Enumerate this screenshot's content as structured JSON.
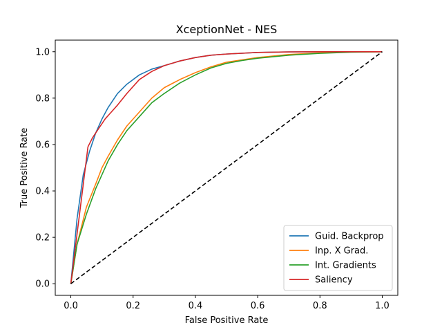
{
  "chart_data": {
    "type": "line",
    "title": "XceptionNet - NES",
    "xlabel": "False Positive Rate",
    "ylabel": "True Positive Rate",
    "xlim": [
      -0.05,
      1.05
    ],
    "ylim": [
      -0.05,
      1.05
    ],
    "xticks": [
      "0.0",
      "0.2",
      "0.4",
      "0.6",
      "0.8",
      "1.0"
    ],
    "yticks": [
      "0.0",
      "0.2",
      "0.4",
      "0.6",
      "0.8",
      "1.0"
    ],
    "grid": false,
    "legend_position": "lower-right",
    "series": [
      {
        "name": "Guid. Backprop",
        "color": "#1f77b4",
        "x": [
          0,
          0.02,
          0.04,
          0.06,
          0.08,
          0.1,
          0.12,
          0.15,
          0.18,
          0.22,
          0.26,
          0.3,
          0.35,
          0.4,
          0.45,
          0.5,
          0.6,
          0.7,
          0.8,
          0.9,
          1.0
        ],
        "y": [
          0,
          0.28,
          0.47,
          0.57,
          0.65,
          0.71,
          0.76,
          0.82,
          0.86,
          0.9,
          0.925,
          0.94,
          0.96,
          0.975,
          0.985,
          0.99,
          0.997,
          0.999,
          1.0,
          1.0,
          1.0
        ]
      },
      {
        "name": "Inp. X Grad.",
        "color": "#ff7f0e",
        "x": [
          0,
          0.02,
          0.05,
          0.08,
          0.1,
          0.12,
          0.15,
          0.18,
          0.22,
          0.26,
          0.3,
          0.35,
          0.4,
          0.45,
          0.5,
          0.55,
          0.6,
          0.7,
          0.8,
          0.9,
          1.0
        ],
        "y": [
          0,
          0.17,
          0.33,
          0.43,
          0.5,
          0.55,
          0.62,
          0.68,
          0.74,
          0.8,
          0.845,
          0.88,
          0.91,
          0.935,
          0.955,
          0.965,
          0.975,
          0.988,
          0.995,
          0.999,
          1.0
        ]
      },
      {
        "name": "Int. Gradients",
        "color": "#2ca02c",
        "x": [
          0,
          0.02,
          0.05,
          0.08,
          0.1,
          0.12,
          0.15,
          0.18,
          0.22,
          0.26,
          0.3,
          0.35,
          0.4,
          0.45,
          0.5,
          0.55,
          0.6,
          0.7,
          0.8,
          0.9,
          1.0
        ],
        "y": [
          0,
          0.17,
          0.3,
          0.41,
          0.47,
          0.53,
          0.6,
          0.66,
          0.72,
          0.78,
          0.82,
          0.865,
          0.9,
          0.93,
          0.95,
          0.962,
          0.972,
          0.985,
          0.993,
          0.998,
          1.0
        ]
      },
      {
        "name": "Saliency",
        "color": "#d62728",
        "x": [
          0,
          0.055,
          0.07,
          0.09,
          0.11,
          0.13,
          0.15,
          0.18,
          0.22,
          0.26,
          0.3,
          0.35,
          0.4,
          0.45,
          0.5,
          0.6,
          0.7,
          0.8,
          0.9,
          1.0
        ],
        "y": [
          0,
          0.59,
          0.63,
          0.67,
          0.71,
          0.74,
          0.77,
          0.82,
          0.88,
          0.915,
          0.94,
          0.96,
          0.975,
          0.985,
          0.99,
          0.997,
          0.999,
          1.0,
          1.0,
          1.0
        ]
      },
      {
        "name": "",
        "color": "#000000",
        "dashed": true,
        "x": [
          0,
          1
        ],
        "y": [
          0,
          1
        ]
      }
    ]
  }
}
